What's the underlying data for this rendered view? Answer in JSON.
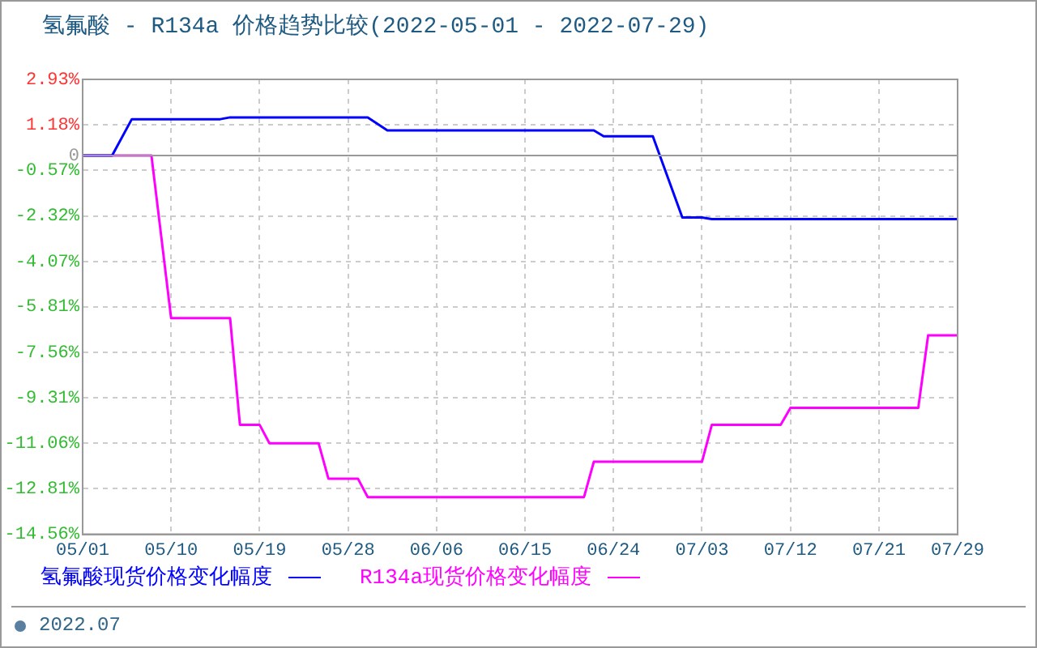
{
  "chart_data": {
    "type": "line",
    "title": "氢氟酸 - R134a 价格趋势比较(2022-05-01 - 2022-07-29)",
    "x": [
      "2022-05-01",
      "2022-05-04",
      "2022-05-06",
      "2022-05-15",
      "2022-05-16",
      "2022-05-30",
      "2022-06-01",
      "2022-06-22",
      "2022-06-23",
      "2022-06-28",
      "2022-07-01",
      "2022-07-03",
      "2022-07-04",
      "2022-07-29"
    ],
    "series": [
      {
        "name": "氢氟酸现货价格变化幅度",
        "color": "#0000ff",
        "values": [
          0,
          0,
          1.4,
          1.4,
          1.47,
          1.47,
          0.97,
          0.97,
          0.74,
          0.74,
          -2.38,
          -2.38,
          -2.44,
          -2.44
        ]
      },
      {
        "name": "R134a现货价格变化幅度",
        "color": "#ff00ff",
        "x": [
          "2022-05-01",
          "2022-05-08",
          "2022-05-10",
          "2022-05-16",
          "2022-05-17",
          "2022-05-19",
          "2022-05-20",
          "2022-05-25",
          "2022-05-26",
          "2022-05-29",
          "2022-05-30",
          "2022-06-21",
          "2022-06-22",
          "2022-07-03",
          "2022-07-04",
          "2022-07-11",
          "2022-07-12",
          "2022-07-25",
          "2022-07-26",
          "2022-07-29"
        ],
        "values": [
          0,
          0,
          -6.25,
          -6.25,
          -10.35,
          -10.35,
          -11.06,
          -11.06,
          -12.42,
          -12.42,
          -13.13,
          -13.13,
          -11.77,
          -11.77,
          -10.35,
          -10.35,
          -9.7,
          -9.7,
          -6.91,
          -6.91
        ]
      }
    ],
    "xlim": [
      "2022-05-01",
      "2022-07-29"
    ],
    "xticks": [
      {
        "value": "2022-05-01",
        "label": "05/01"
      },
      {
        "value": "2022-05-10",
        "label": "05/10"
      },
      {
        "value": "2022-05-19",
        "label": "05/19"
      },
      {
        "value": "2022-05-28",
        "label": "05/28"
      },
      {
        "value": "2022-06-06",
        "label": "06/06"
      },
      {
        "value": "2022-06-15",
        "label": "06/15"
      },
      {
        "value": "2022-06-24",
        "label": "06/24"
      },
      {
        "value": "2022-07-03",
        "label": "07/03"
      },
      {
        "value": "2022-07-12",
        "label": "07/12"
      },
      {
        "value": "2022-07-21",
        "label": "07/21"
      },
      {
        "value": "2022-07-29",
        "label": "07/29"
      }
    ],
    "ylim": [
      -14.56,
      2.93
    ],
    "yticks": [
      {
        "value": 2.93,
        "label": "2.93%"
      },
      {
        "value": 1.18,
        "label": "1.18%"
      },
      {
        "value": 0,
        "label": "0"
      },
      {
        "value": -0.57,
        "label": "-0.57%"
      },
      {
        "value": -2.32,
        "label": "-2.32%"
      },
      {
        "value": -4.07,
        "label": "-4.07%"
      },
      {
        "value": -5.81,
        "label": "-5.81%"
      },
      {
        "value": -7.56,
        "label": "-7.56%"
      },
      {
        "value": -9.31,
        "label": "-9.31%"
      },
      {
        "value": -11.06,
        "label": "-11.06%"
      },
      {
        "value": -12.81,
        "label": "-12.81%"
      },
      {
        "value": -14.56,
        "label": "-14.56%"
      }
    ],
    "ref_lines": [
      {
        "axis": "y",
        "value": 0,
        "color": "#999999"
      }
    ],
    "grid": true,
    "legend": "bottom",
    "marker": "none",
    "annotations": [
      "2022.07"
    ]
  }
}
